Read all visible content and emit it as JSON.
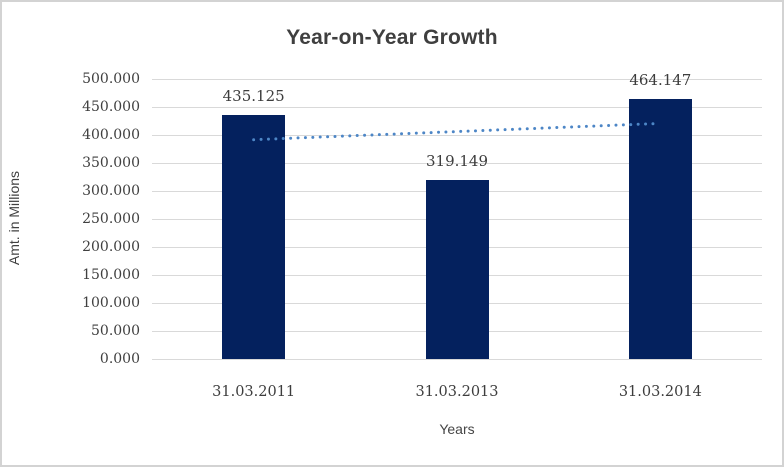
{
  "chart_data": {
    "type": "bar",
    "title": "Year-on-Year Growth",
    "xlabel": "Years",
    "ylabel": "Amt. in Millions",
    "categories": [
      "31.03.2011",
      "31.03.2013",
      "31.03.2014"
    ],
    "values": [
      435.125,
      319.149,
      464.147
    ],
    "value_labels": [
      "435.125",
      "319.149",
      "464.147"
    ],
    "ylim": [
      0,
      500
    ],
    "yticks": [
      {
        "value": 0,
        "label": "0.000"
      },
      {
        "value": 50,
        "label": "50.000"
      },
      {
        "value": 100,
        "label": "100.000"
      },
      {
        "value": 150,
        "label": "150.000"
      },
      {
        "value": 200,
        "label": "200.000"
      },
      {
        "value": 250,
        "label": "250.000"
      },
      {
        "value": 300,
        "label": "300.000"
      },
      {
        "value": 350,
        "label": "350.000"
      },
      {
        "value": 400,
        "label": "400.000"
      },
      {
        "value": 450,
        "label": "450.000"
      },
      {
        "value": 500,
        "label": "500.000"
      }
    ],
    "grid": true,
    "legend": false,
    "trendline": {
      "type": "linear",
      "style": "dotted",
      "start_value": 391.6,
      "end_value": 420.7,
      "color": "#4d86c6"
    },
    "colors": {
      "bar": "#04215e",
      "gridline": "#d9d9d9",
      "text": "#3f3f3f",
      "background": "#ffffff",
      "frame_border": "#d3d3d3"
    }
  }
}
